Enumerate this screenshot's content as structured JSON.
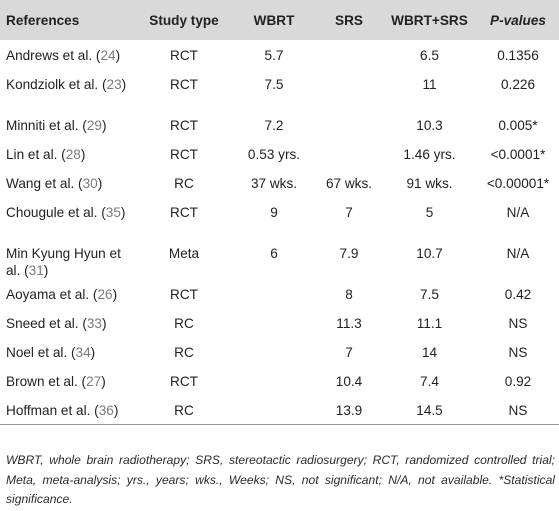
{
  "table": {
    "headers": [
      "References",
      "Study type",
      "WBRT",
      "SRS",
      "WBRT+SRS",
      "P-values"
    ],
    "rows": [
      {
        "ref": "Andrews et al.",
        "cite": "24",
        "type": "RCT",
        "wbrt": "5.7",
        "srs": "",
        "combo": "6.5",
        "p": "0.1356"
      },
      {
        "ref": "Kondziolk et al.",
        "cite": "23",
        "type": "RCT",
        "wbrt": "7.5",
        "srs": "",
        "combo": "11",
        "p": "0.226"
      },
      {
        "ref": "Minniti et al.",
        "cite": "29",
        "type": "RCT",
        "wbrt": "7.2",
        "srs": "",
        "combo": "10.3",
        "p": "0.005*"
      },
      {
        "ref": "Lin et al.",
        "cite": "28",
        "type": "RCT",
        "wbrt": "0.53 yrs.",
        "srs": "",
        "combo": "1.46 yrs.",
        "p": "<0.0001*"
      },
      {
        "ref": "Wang et al.",
        "cite": "30",
        "type": "RC",
        "wbrt": "37 wks.",
        "srs": "67 wks.",
        "combo": "91 wks.",
        "p": "<0.00001*"
      },
      {
        "ref": "Chougule et al.",
        "cite": "35",
        "type": "RCT",
        "wbrt": "9",
        "srs": "7",
        "combo": "5",
        "p": "N/A"
      },
      {
        "ref": "Min Kyung Hyun et al.",
        "cite": "31",
        "type": "Meta",
        "wbrt": "6",
        "srs": "7.9",
        "combo": "10.7",
        "p": "N/A"
      },
      {
        "ref": "Aoyama et al.",
        "cite": "26",
        "type": "RCT",
        "wbrt": "",
        "srs": "8",
        "combo": "7.5",
        "p": "0.42"
      },
      {
        "ref": "Sneed et al.",
        "cite": "33",
        "type": "RC",
        "wbrt": "",
        "srs": "11.3",
        "combo": "11.1",
        "p": "NS"
      },
      {
        "ref": "Noel et al.",
        "cite": "34",
        "type": "RC",
        "wbrt": "",
        "srs": "7",
        "combo": "14",
        "p": "NS"
      },
      {
        "ref": "Brown et al.",
        "cite": "27",
        "type": "RCT",
        "wbrt": "",
        "srs": "10.4",
        "combo": "7.4",
        "p": "0.92"
      },
      {
        "ref": "Hoffman et al.",
        "cite": "36",
        "type": "RC",
        "wbrt": "",
        "srs": "13.9",
        "combo": "14.5",
        "p": "NS"
      }
    ]
  },
  "footnote": "WBRT, whole brain radiotherapy; SRS, stereotactic radiosurgery; RCT, randomized controlled trial; Meta, meta-analysis; yrs., years; wks., Weeks; NS, not significant; N/A, not available. *Statistical significance."
}
